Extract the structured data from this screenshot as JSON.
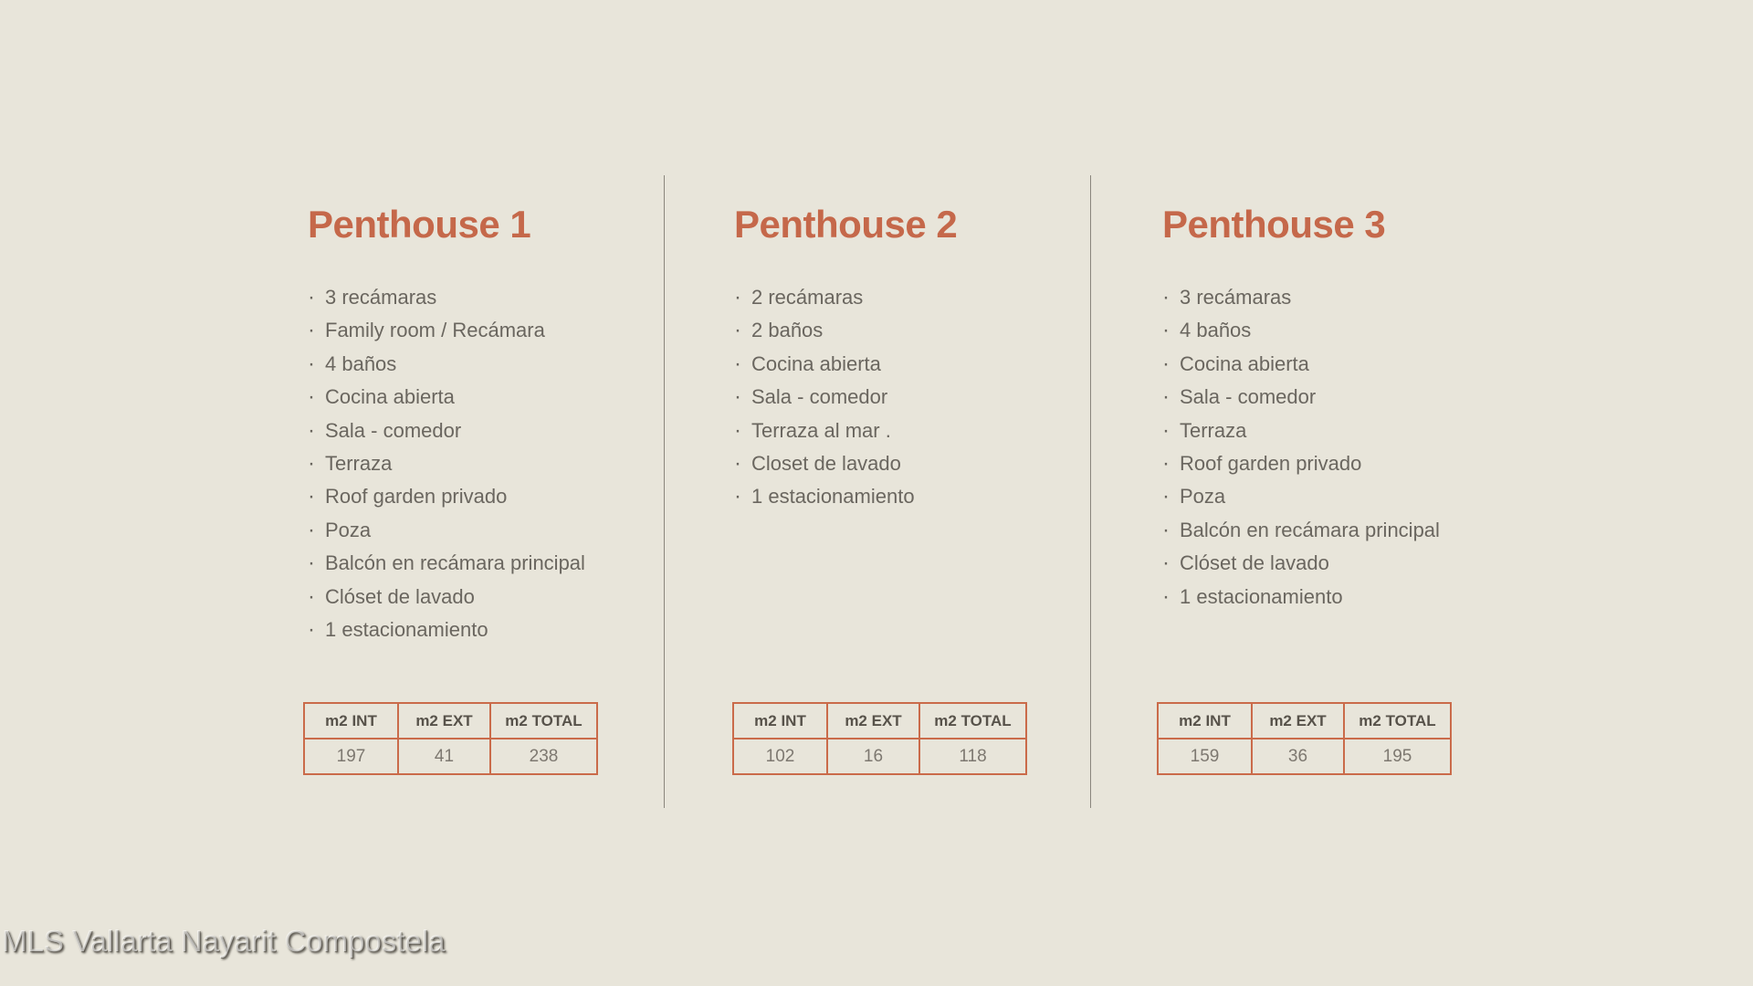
{
  "ui": {
    "bullet_char": "·"
  },
  "colors": {
    "background": "#e8e5da",
    "accent_orange": "#c5684a",
    "table_border_orange": "#ca6b4a",
    "body_text_gray": "#6a665f",
    "divider_gray": "#8a867d"
  },
  "watermark": {
    "text": "MLS Vallarta Nayarit Compostela"
  },
  "columns": [
    {
      "title": "Penthouse 1",
      "features": [
        "3 recámaras",
        "Family room / Recámara",
        "4 baños",
        "Cocina abierta",
        "Sala - comedor",
        "Terraza",
        "Roof garden privado",
        "Poza",
        "Balcón en recámara principal",
        "Clóset de lavado",
        "1 estacionamiento"
      ],
      "table": {
        "headers": [
          "m2 INT",
          "m2 EXT",
          "m2 TOTAL"
        ],
        "values": [
          "197",
          "41",
          "238"
        ]
      }
    },
    {
      "title": "Penthouse 2",
      "features": [
        "2 recámaras",
        "2 baños",
        "Cocina abierta",
        "Sala - comedor",
        "Terraza al mar .",
        "Closet de lavado",
        "1 estacionamiento"
      ],
      "table": {
        "headers": [
          "m2 INT",
          "m2 EXT",
          "m2 TOTAL"
        ],
        "values": [
          "102",
          "16",
          "118"
        ]
      }
    },
    {
      "title": "Penthouse 3",
      "features": [
        "3 recámaras",
        "4 baños",
        "Cocina abierta",
        "Sala - comedor",
        "Terraza",
        "Roof garden privado",
        "Poza",
        "Balcón en recámara principal",
        "Clóset de lavado",
        "1 estacionamiento"
      ],
      "table": {
        "headers": [
          "m2 INT",
          "m2 EXT",
          "m2 TOTAL"
        ],
        "values": [
          "159",
          "36",
          "195"
        ]
      }
    }
  ]
}
